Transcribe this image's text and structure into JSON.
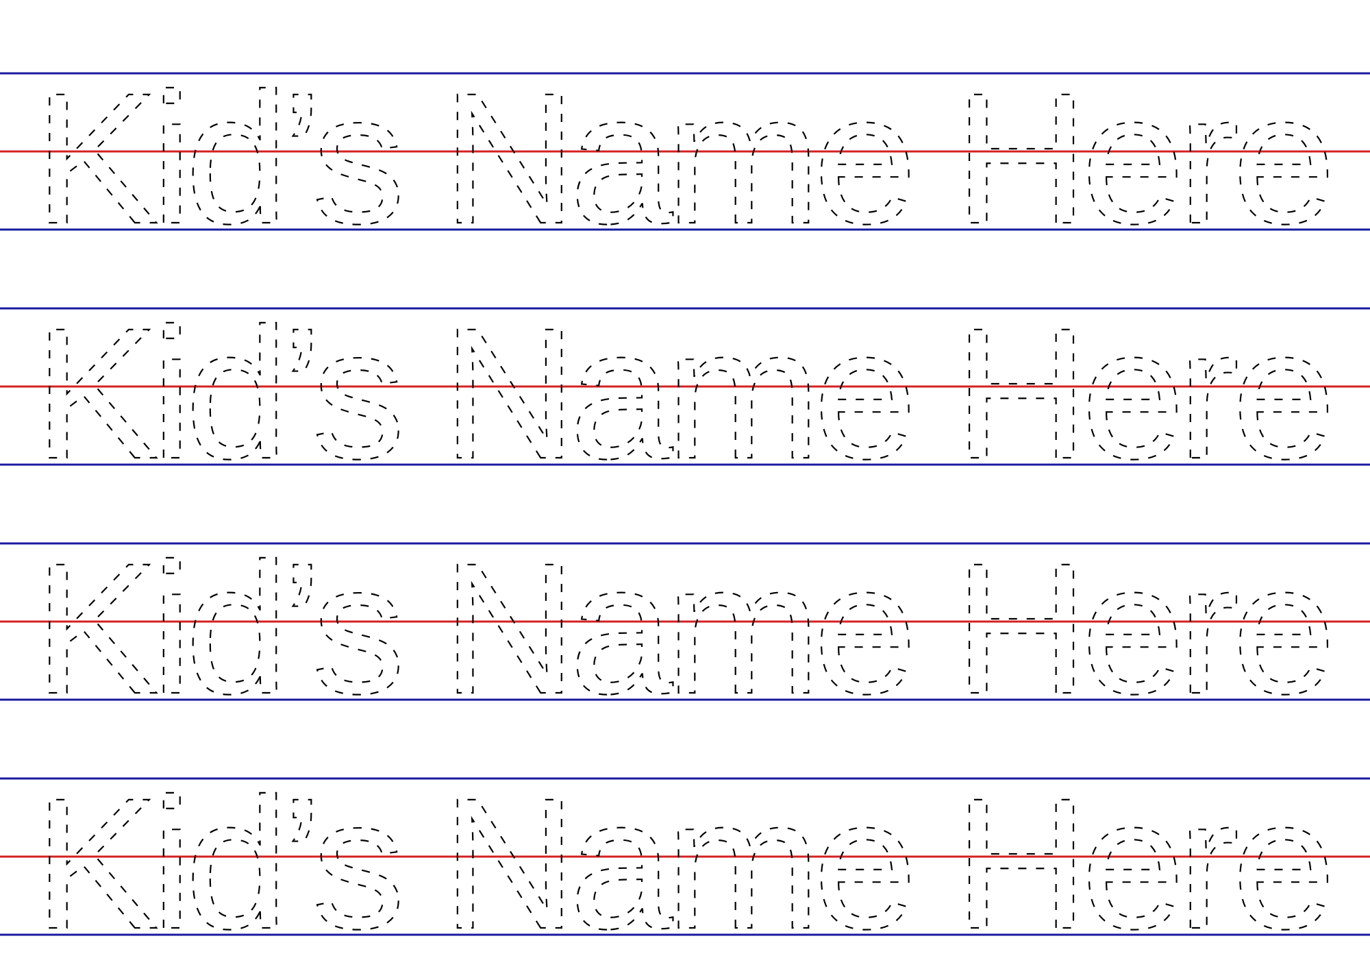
{
  "worksheet": {
    "rows": [
      {
        "text": "Kid’s Name Here"
      },
      {
        "text": "Kid’s Name Here"
      },
      {
        "text": "Kid’s Name Here"
      },
      {
        "text": "Kid’s Name Here"
      }
    ]
  }
}
